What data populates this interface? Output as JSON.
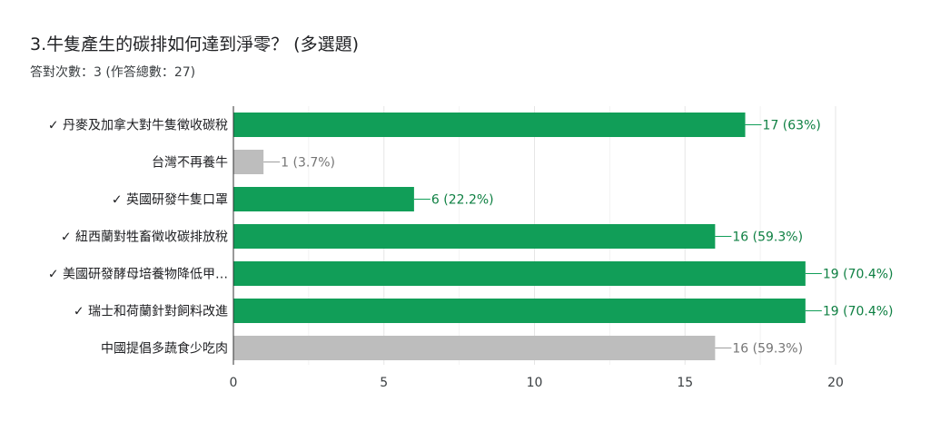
{
  "question": {
    "title": "3.牛隻產生的碳排如何達到淨零？ (多選題)",
    "summary": "答對次數：3 (作答總數：27)"
  },
  "colors": {
    "correct": "#119e58",
    "incorrect": "#bdbdbd",
    "correct_label": "#0f8043",
    "incorrect_label": "#757575"
  },
  "chart_data": {
    "type": "bar",
    "orientation": "horizontal",
    "title": "",
    "xlabel": "",
    "ylabel": "",
    "xlim": [
      0,
      20
    ],
    "xticks": [
      0,
      5,
      10,
      15,
      20
    ],
    "grid": true,
    "categories": [
      "✓ 丹麥及加拿大對牛隻徵收碳稅",
      "台灣不再養牛",
      "✓ 英國研發牛隻口罩",
      "✓ 紐西蘭對牲畜徵收碳排放稅",
      "✓ 美國研發酵母培養物降低甲…",
      "✓ 瑞士和荷蘭針對飼料改進",
      "中國提倡多蔬食少吃肉"
    ],
    "values": [
      17,
      1,
      6,
      16,
      19,
      19,
      16
    ],
    "correct": [
      true,
      false,
      true,
      true,
      true,
      true,
      false
    ],
    "data_labels": [
      "17 (63%)",
      "1 (3.7%)",
      "6 (22.2%)",
      "16 (59.3%)",
      "19 (70.4%)",
      "19 (70.4%)",
      "16 (59.3%)"
    ]
  }
}
